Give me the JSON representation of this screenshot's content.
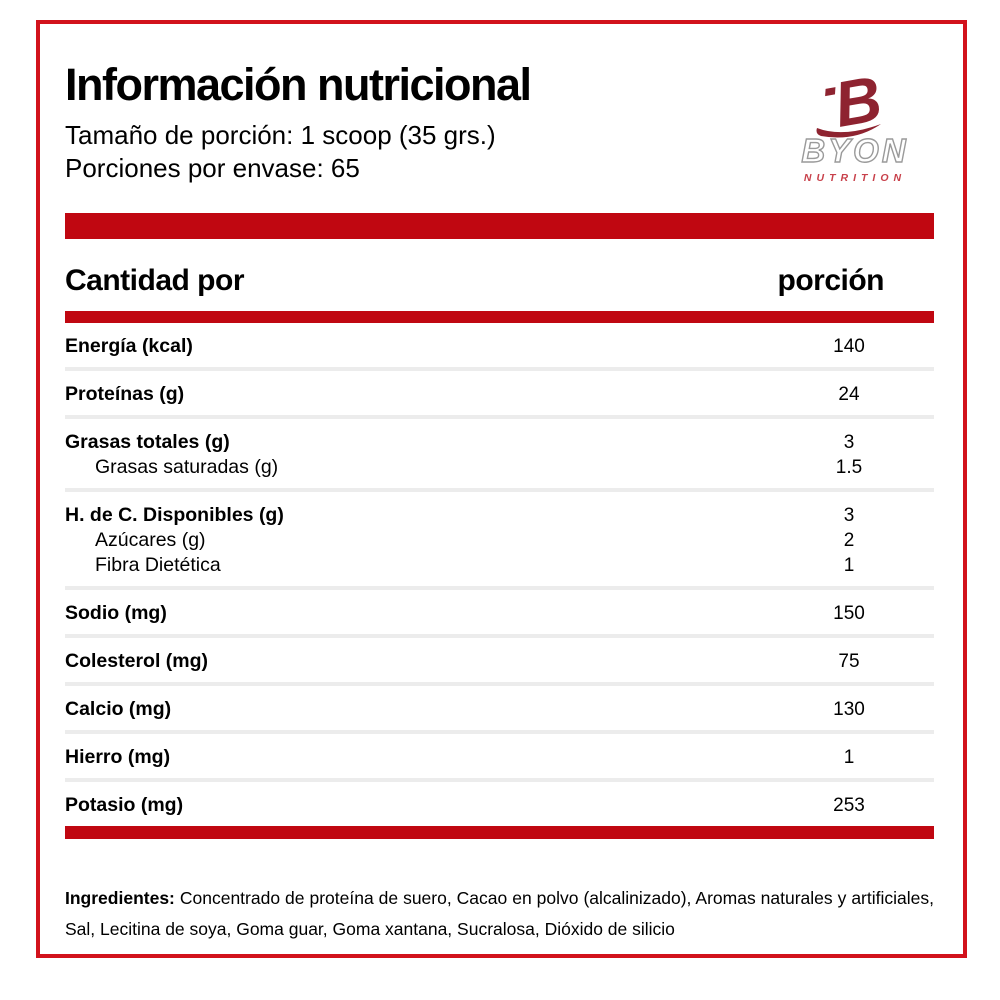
{
  "colors": {
    "bar_red": "#c00711",
    "frame_red": "#d2121c",
    "logo_mark": "#8e2330",
    "logo_tagline": "#c8414b",
    "separator_gray": "#ececec"
  },
  "header": {
    "title": "Información nutricional",
    "serving_size": "Tamaño de porción: 1 scoop (35 grs.)",
    "servings_per_container": "Porciones por envase: 65"
  },
  "logo": {
    "brand": "BYON",
    "tagline": "NUTRITION"
  },
  "table": {
    "header_left": "Cantidad por",
    "header_right": "porción",
    "groups": [
      {
        "rows": [
          {
            "label": "Energía (kcal)",
            "value": "140",
            "bold": true,
            "indent": false
          }
        ]
      },
      {
        "rows": [
          {
            "label": "Proteínas (g)",
            "value": "24",
            "bold": true,
            "indent": false
          }
        ]
      },
      {
        "rows": [
          {
            "label": "Grasas totales (g)",
            "value": "3",
            "bold": true,
            "indent": false
          },
          {
            "label": "Grasas saturadas (g)",
            "value": "1.5",
            "bold": false,
            "indent": true
          }
        ]
      },
      {
        "rows": [
          {
            "label": "H. de C. Disponibles (g)",
            "value": "3",
            "bold": true,
            "indent": false
          },
          {
            "label": "Azúcares (g)",
            "value": "2",
            "bold": false,
            "indent": true
          },
          {
            "label": "Fibra Dietética",
            "value": "1",
            "bold": false,
            "indent": true
          }
        ]
      },
      {
        "rows": [
          {
            "label": "Sodio (mg)",
            "value": "150",
            "bold": true,
            "indent": false
          }
        ]
      },
      {
        "rows": [
          {
            "label": "Colesterol (mg)",
            "value": "75",
            "bold": true,
            "indent": false
          }
        ]
      },
      {
        "rows": [
          {
            "label": "Calcio (mg)",
            "value": "130",
            "bold": true,
            "indent": false
          }
        ]
      },
      {
        "rows": [
          {
            "label": "Hierro (mg)",
            "value": "1",
            "bold": true,
            "indent": false
          }
        ]
      },
      {
        "rows": [
          {
            "label": "Potasio (mg)",
            "value": "253",
            "bold": true,
            "indent": false
          }
        ]
      }
    ]
  },
  "ingredients": {
    "label": "Ingredientes:",
    "text": "Concentrado de proteína de suero, Cacao en polvo (alcalinizado), Aromas naturales y artificiales, Sal, Lecitina de soya, Goma guar, Goma xantana, Sucralosa, Dióxido de silicio"
  }
}
